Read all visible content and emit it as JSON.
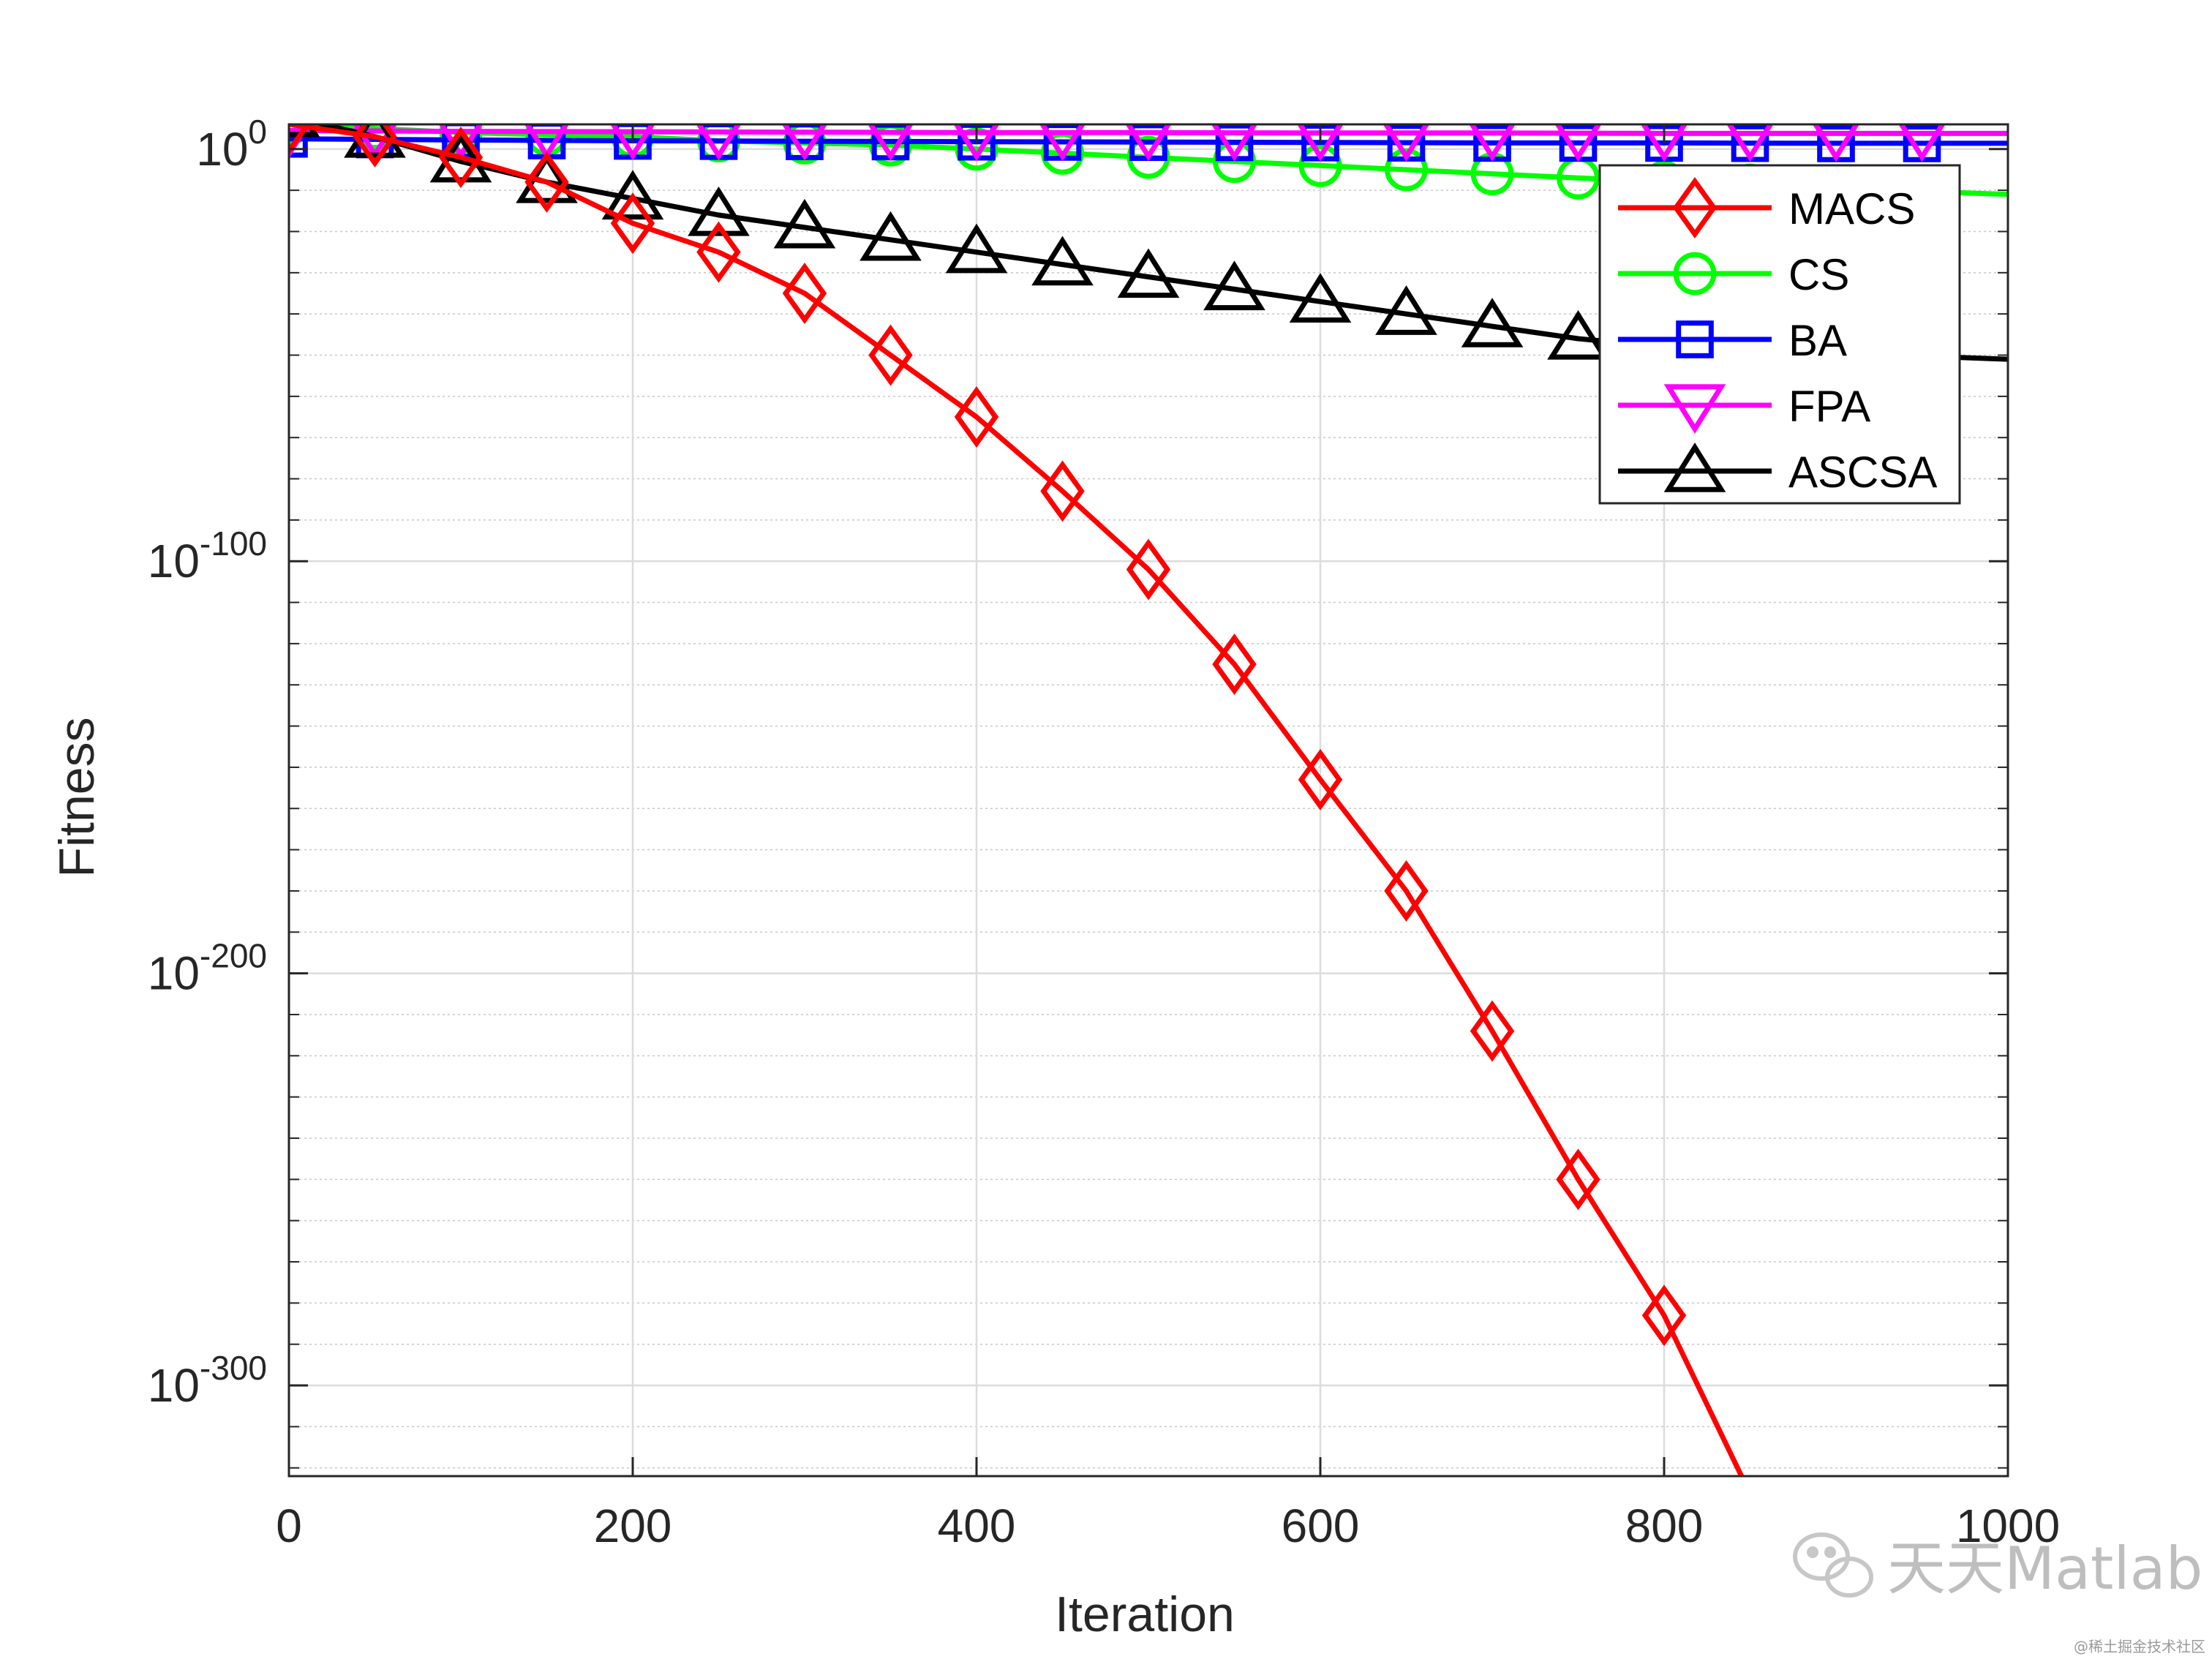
{
  "chart_data": {
    "type": "line",
    "title": "",
    "xlabel": "Iteration",
    "ylabel": "Fitness",
    "yscale": "log",
    "xlim": [
      0,
      1000
    ],
    "ylim_exponent": [
      -322,
      6
    ],
    "x_ticks": [
      0,
      200,
      400,
      600,
      800,
      1000
    ],
    "x_tick_labels": [
      "0",
      "200",
      "400",
      "600",
      "800",
      "1000"
    ],
    "y_tick_exponents": [
      0,
      -100,
      -200,
      -300
    ],
    "y_tick_labels": [
      {
        "base": "10",
        "exp": "0"
      },
      {
        "base": "10",
        "exp": "-100"
      },
      {
        "base": "10",
        "exp": "-200"
      },
      {
        "base": "10",
        "exp": "-300"
      }
    ],
    "grid": true,
    "legend_position": "top-right",
    "marker_interval": 50,
    "series": [
      {
        "name": "MACS",
        "color": "#ff0000",
        "marker": "diamond",
        "x": [
          0,
          50,
          100,
          150,
          200,
          250,
          300,
          350,
          400,
          450,
          500,
          550,
          600,
          650,
          700,
          750,
          800,
          845
        ],
        "log10_y": [
          6,
          3,
          -2,
          -8,
          -18,
          -25,
          -35,
          -50,
          -65,
          -83,
          -102,
          -125,
          -153,
          -180,
          -214,
          -250,
          -283,
          -322
        ]
      },
      {
        "name": "CS",
        "color": "#00ff00",
        "marker": "circle",
        "x": [
          0,
          50,
          100,
          150,
          200,
          250,
          300,
          350,
          400,
          450,
          500,
          550,
          600,
          650,
          700,
          750,
          800,
          1000
        ],
        "log10_y": [
          6,
          5,
          4,
          3.5,
          3,
          2,
          1.5,
          1,
          0,
          -1,
          -2,
          -3,
          -4,
          -5,
          -6,
          -7,
          -8,
          -11
        ]
      },
      {
        "name": "BA",
        "color": "#0000ff",
        "marker": "square",
        "x": [
          0,
          100,
          200,
          300,
          400,
          500,
          600,
          700,
          800,
          900,
          1000
        ],
        "log10_y": [
          2.5,
          2.2,
          2,
          1.9,
          1.8,
          1.7,
          1.6,
          1.5,
          1.5,
          1.4,
          1.4
        ]
      },
      {
        "name": "FPA",
        "color": "#ff00ff",
        "marker": "triangle-down",
        "x": [
          0,
          100,
          200,
          300,
          400,
          500,
          600,
          700,
          800,
          900,
          1000
        ],
        "log10_y": [
          4.5,
          4.3,
          4.2,
          4.1,
          4,
          4,
          3.9,
          3.9,
          3.8,
          3.8,
          3.8
        ]
      },
      {
        "name": "ASCSA",
        "color": "#000000",
        "marker": "triangle-up",
        "x": [
          0,
          50,
          100,
          150,
          200,
          250,
          300,
          350,
          400,
          450,
          500,
          550,
          600,
          650,
          700,
          750,
          800,
          1000
        ],
        "log10_y": [
          8,
          3,
          -3,
          -8,
          -12,
          -16,
          -19,
          -22,
          -25,
          -28,
          -31,
          -34,
          -37,
          -40,
          -43,
          -46,
          -48,
          -51
        ]
      }
    ]
  },
  "watermark": {
    "text": "天天Matlab",
    "footer": "@稀土掘金技术社区"
  }
}
